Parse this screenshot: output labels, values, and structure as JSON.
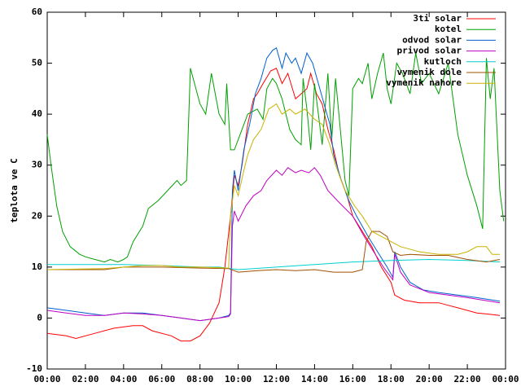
{
  "chart_data": {
    "type": "line",
    "ylabel": "teplota ve C",
    "xlim": [
      0,
      24
    ],
    "ylim": [
      -10,
      60
    ],
    "yticks": [
      -10,
      0,
      10,
      20,
      30,
      40,
      50,
      60
    ],
    "xticks": [
      {
        "value": 0,
        "label": "00:00"
      },
      {
        "value": 2,
        "label": "02:00"
      },
      {
        "value": 4,
        "label": "04:00"
      },
      {
        "value": 6,
        "label": "06:00"
      },
      {
        "value": 8,
        "label": "08:00"
      },
      {
        "value": 10,
        "label": "10:00"
      },
      {
        "value": 12,
        "label": "12:00"
      },
      {
        "value": 14,
        "label": "14:00"
      },
      {
        "value": 16,
        "label": "16:00"
      },
      {
        "value": 18,
        "label": "18:00"
      },
      {
        "value": 20,
        "label": "20:00"
      },
      {
        "value": 22,
        "label": "22:00"
      },
      {
        "value": 24,
        "label": "00:00"
      }
    ],
    "legend": "upper right",
    "series": [
      {
        "name": "3ti solar",
        "color": "#ff0000",
        "x": [
          0,
          1,
          1.5,
          2.5,
          3.5,
          4.5,
          5,
          5.5,
          6.5,
          7,
          7.5,
          8,
          8.5,
          9,
          9.3,
          9.6,
          9.8,
          10,
          10.2,
          10.5,
          10.8,
          11,
          11.3,
          11.7,
          12,
          12.3,
          12.6,
          13,
          13.3,
          13.6,
          13.8,
          14.1,
          14.4,
          14.7,
          15,
          15.3,
          15.7,
          16,
          16.5,
          17,
          17.5,
          18,
          18.2,
          18.7,
          19.5,
          20.5,
          21,
          21.5,
          22.5,
          23,
          23.7
        ],
        "values": [
          -3,
          -3.5,
          -4,
          -3,
          -2,
          -1.5,
          -1.5,
          -2.5,
          -3.5,
          -4.5,
          -4.5,
          -3.5,
          -1,
          3,
          10,
          20,
          28,
          26,
          30,
          38,
          43,
          44,
          46,
          48.5,
          49,
          46,
          48,
          43,
          44,
          45,
          48,
          44,
          42,
          37,
          33,
          28,
          24,
          20,
          17,
          14,
          10,
          7,
          4.5,
          3.5,
          3,
          3,
          2.5,
          2,
          1,
          0.8,
          0.5
        ]
      },
      {
        "name": "kotel",
        "color": "#00a000",
        "x": [
          0,
          0.2,
          0.5,
          0.8,
          1.2,
          1.7,
          2,
          2.5,
          3,
          3.3,
          3.7,
          4,
          4.2,
          4.5,
          5,
          5.3,
          5.8,
          6.3,
          6.8,
          7,
          7.3,
          7.5,
          8,
          8.3,
          8.6,
          9,
          9.3,
          9.4,
          9.6,
          9.8,
          10.2,
          10.5,
          11,
          11.3,
          11.5,
          11.8,
          12,
          12.3,
          12.7,
          13,
          13.3,
          13.4,
          13.6,
          13.8,
          14,
          14.4,
          14.7,
          14.9,
          15.1,
          15.6,
          15.8,
          16,
          16.3,
          16.5,
          16.8,
          17,
          17.3,
          17.6,
          17.8,
          18,
          18.3,
          18.6,
          19,
          19.3,
          19.6,
          20,
          20.5,
          21,
          21.5,
          22,
          22.5,
          22.8,
          23,
          23.2,
          23.4,
          23.7,
          23.9
        ],
        "values": [
          36,
          30,
          22,
          17,
          14,
          12.5,
          12,
          11.5,
          11,
          11.5,
          11,
          11.5,
          12,
          15,
          18,
          21.5,
          23,
          25,
          27,
          26,
          27,
          49,
          42,
          40,
          48,
          40,
          38,
          46,
          33,
          33,
          37,
          40,
          41,
          39,
          45,
          47,
          46,
          43,
          37,
          35,
          34,
          47,
          41,
          33,
          46,
          34,
          48,
          35,
          47,
          27,
          24,
          45,
          47,
          46,
          50,
          43,
          48,
          52,
          45,
          42,
          50,
          48,
          44,
          52,
          46,
          48,
          44,
          50,
          36,
          28,
          22,
          17.5,
          51,
          43,
          49,
          25,
          19
        ]
      },
      {
        "name": "odvod solar",
        "color": "#0060d0",
        "x": [
          0,
          1,
          2,
          3,
          4,
          5,
          6,
          7,
          8,
          9,
          9.5,
          9.6,
          9.7,
          9.8,
          10,
          10.3,
          10.6,
          10.9,
          11.2,
          11.5,
          11.8,
          12,
          12.3,
          12.5,
          12.8,
          13,
          13.3,
          13.6,
          13.9,
          14.2,
          14.5,
          14.8,
          15,
          15.4,
          15.8,
          16.2,
          16.8,
          17.3,
          17.8,
          18.1,
          18.2,
          18.5,
          19,
          19.7,
          20.5,
          21.5,
          22.5,
          23.7
        ],
        "values": [
          2,
          1.5,
          1,
          0.5,
          1,
          1,
          0.5,
          0,
          -0.5,
          0,
          0.5,
          1,
          25,
          29,
          25,
          33,
          38,
          44,
          47,
          51,
          52.5,
          53,
          49,
          52,
          50,
          51,
          48,
          52,
          50,
          46,
          42,
          38,
          32,
          27,
          23,
          20,
          16,
          13,
          10,
          8,
          13,
          10,
          7,
          5.5,
          5,
          4.5,
          4,
          3.3
        ]
      },
      {
        "name": "privod solar",
        "color": "#c000c0",
        "x": [
          0,
          1,
          2,
          3,
          4,
          5,
          6,
          7,
          8,
          9,
          9.5,
          9.6,
          9.7,
          9.8,
          10,
          10.4,
          10.8,
          11.2,
          11.5,
          12,
          12.3,
          12.6,
          13,
          13.3,
          13.7,
          14,
          14.3,
          14.7,
          15.2,
          16,
          16.6,
          17.1,
          17.6,
          18.1,
          18.2,
          18.5,
          19,
          20,
          21,
          22,
          23.7
        ],
        "values": [
          1.5,
          1,
          0.5,
          0.5,
          1,
          0.8,
          0.5,
          0,
          -0.5,
          0,
          0.3,
          0.8,
          18,
          21,
          19,
          22,
          24,
          25,
          27,
          29,
          28,
          29.5,
          28.5,
          29,
          28.5,
          29.5,
          28,
          25,
          23,
          20,
          16,
          13,
          10,
          7.5,
          12.5,
          9,
          6.5,
          5,
          4.5,
          4,
          3
        ]
      },
      {
        "name": "kutloch",
        "color": "#00d0d0",
        "x": [
          0,
          4,
          6,
          8,
          9,
          10,
          12,
          14,
          16,
          18,
          20,
          22,
          23.7
        ],
        "values": [
          10.5,
          10.5,
          10.3,
          10,
          10,
          9.5,
          10,
          10.5,
          11,
          11.3,
          11.5,
          11.3,
          11
        ]
      },
      {
        "name": "vymenik dole",
        "color": "#a05000",
        "x": [
          0,
          3,
          4,
          6,
          8,
          9.5,
          10,
          11,
          12,
          13,
          14,
          15,
          16,
          16.5,
          16.7,
          17,
          17.4,
          17.8,
          18.1,
          18.5,
          19,
          20,
          21,
          22,
          23,
          23.7
        ],
        "values": [
          9.5,
          9.5,
          10,
          10,
          9.8,
          9.7,
          9,
          9.3,
          9.5,
          9.3,
          9.5,
          9,
          9,
          9.5,
          15,
          17,
          17,
          16,
          13,
          12.3,
          12.5,
          12.3,
          12.3,
          11.5,
          11,
          11.5
        ]
      },
      {
        "name": "vymenik nahore",
        "color": "#c8b400",
        "x": [
          0,
          3,
          4,
          5,
          6,
          7,
          8,
          9.5,
          9.6,
          9.8,
          10,
          10.3,
          10.5,
          10.8,
          11.2,
          11.6,
          12,
          12.3,
          12.7,
          13,
          13.5,
          14,
          14.4,
          14.8,
          15.1,
          15.6,
          16.1,
          16.5,
          17,
          17.5,
          18,
          18.5,
          19.5,
          20.5,
          21.5,
          22,
          22.5,
          23,
          23.3,
          23.7
        ],
        "values": [
          9.5,
          9.7,
          10,
          10.3,
          10.3,
          10,
          10,
          9.8,
          20,
          26,
          24,
          29,
          32,
          35,
          37,
          41,
          42,
          40,
          41,
          40,
          41,
          39,
          38,
          34,
          30,
          25,
          22,
          20,
          17,
          16,
          15,
          14,
          13,
          12.5,
          12.5,
          13,
          14,
          14,
          12.5,
          12.5
        ]
      }
    ]
  }
}
